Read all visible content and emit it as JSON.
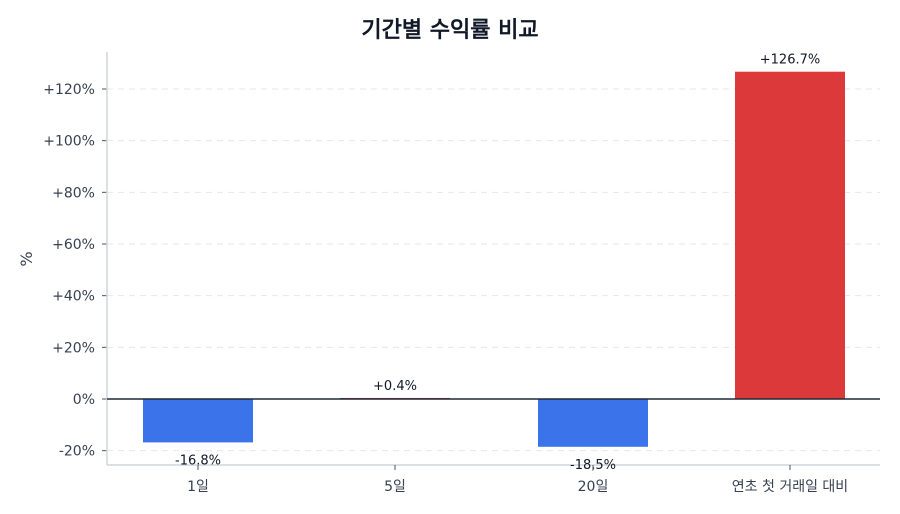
{
  "chart_data": {
    "type": "bar",
    "title": "기간별 수익률 비교",
    "xlabel": "",
    "ylabel": "%",
    "categories": [
      "1일",
      "5일",
      "20일",
      "연초 첫 거래일 대비"
    ],
    "values": [
      -16.8,
      0.4,
      -18.5,
      126.7
    ],
    "value_labels": [
      "-16.8%",
      "+0.4%",
      "-18,5%",
      "+126.7%"
    ],
    "colors": [
      "#3b73ea",
      "#dc3a3a",
      "#3b73ea",
      "#dc3a3a"
    ],
    "ylim": [
      -26,
      135
    ],
    "yticks": [
      -20,
      0,
      20,
      40,
      60,
      80,
      100,
      120
    ],
    "ytick_labels": [
      "-20%",
      "0%",
      "+20%",
      "+40%",
      "+60%",
      "+80%",
      "+100%",
      "+120%"
    ],
    "grid": "horizontal dashed",
    "legend": null
  }
}
